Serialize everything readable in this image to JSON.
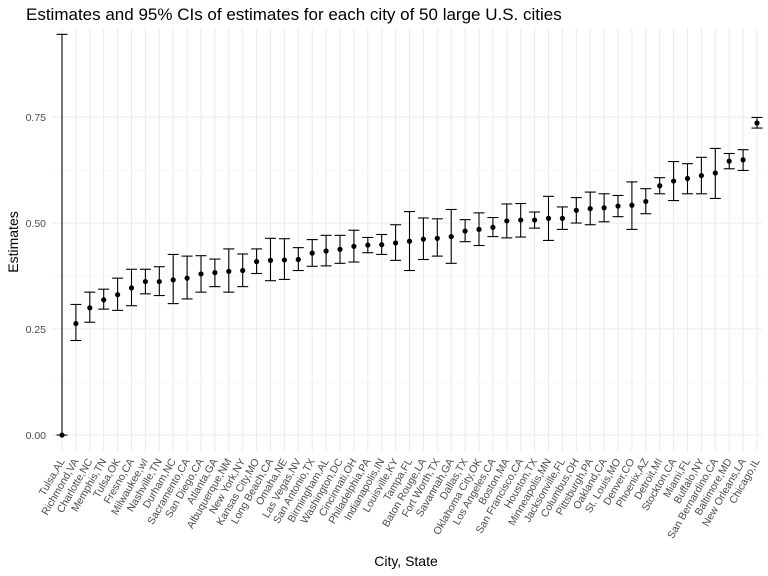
{
  "chart_data": {
    "type": "scatter",
    "title": "Estimates and 95% CIs of estimates for each city of 50 large U.S. cities",
    "xlabel": "City, State",
    "ylabel": "Estimates",
    "ylim": [
      -0.04,
      0.96
    ],
    "yticks": [
      0.0,
      0.25,
      0.5,
      0.75
    ],
    "ytick_labels": [
      "0.00",
      "0.25",
      "0.50",
      "0.75"
    ],
    "grid": true,
    "categories": [
      "Tulsa,AL",
      "Richmond,VA",
      "Charlotte,NC",
      "Memphis,TN",
      "Tulsa,OK",
      "Fresno,CA",
      "Milwaukee,wI",
      "Nashville,TN",
      "Durham,NC",
      "Sacramento,CA",
      "San Diego,CA",
      "Atlanta,GA",
      "Albuquerque,NM",
      "New York,NY",
      "Kansas City,MO",
      "Long Beach,CA",
      "Omaha,NE",
      "Las Vegas,NV",
      "San Antonio,TX",
      "Birmingham,AL",
      "Washington,DC",
      "Cincinnati,OH",
      "Philadelphia,PA",
      "Indianapolis,IN",
      "Louisville,KY",
      "Tampa,FL",
      "Baton Rouge,LA",
      "Fort Worth,TX",
      "Savannah,GA",
      "Dallas,TX",
      "Oklahoma City,OK",
      "Los Angeles,CA",
      "Boston,MA",
      "San Francisco,CA",
      "Houston,TX",
      "Minneapolis,MN",
      "Jacksonville,FL",
      "Columbus,OH",
      "Pittsburgh,PA",
      "Oakland,CA",
      "St. Louis,MO",
      "Denver,CO",
      "Phoenix,AZ",
      "Detroit,MI",
      "Stockton,CA",
      "Miami,FL",
      "Buffalo,NY",
      "San Bernardino,CA",
      "Baltimore,MD",
      "New Orleans,LA",
      "Chicago,IL"
    ],
    "series": [
      {
        "estimate": [
          0.0,
          0.263,
          0.3,
          0.319,
          0.331,
          0.347,
          0.362,
          0.362,
          0.366,
          0.37,
          0.38,
          0.383,
          0.386,
          0.388,
          0.409,
          0.412,
          0.413,
          0.414,
          0.429,
          0.434,
          0.438,
          0.445,
          0.448,
          0.449,
          0.453,
          0.457,
          0.462,
          0.464,
          0.468,
          0.481,
          0.485,
          0.49,
          0.505,
          0.507,
          0.507,
          0.511,
          0.511,
          0.53,
          0.534,
          0.536,
          0.54,
          0.542,
          0.551,
          0.588,
          0.599,
          0.605,
          0.612,
          0.618,
          0.646,
          0.649,
          0.736
        ],
        "ci_low": [
          0.0,
          0.223,
          0.266,
          0.297,
          0.294,
          0.305,
          0.333,
          0.329,
          0.31,
          0.321,
          0.337,
          0.35,
          0.337,
          0.35,
          0.381,
          0.364,
          0.367,
          0.388,
          0.398,
          0.399,
          0.405,
          0.408,
          0.43,
          0.426,
          0.412,
          0.388,
          0.414,
          0.422,
          0.405,
          0.456,
          0.447,
          0.468,
          0.465,
          0.467,
          0.488,
          0.459,
          0.485,
          0.5,
          0.496,
          0.503,
          0.515,
          0.485,
          0.522,
          0.569,
          0.553,
          0.569,
          0.569,
          0.558,
          0.628,
          0.624,
          0.724
        ],
        "ci_high": [
          0.945,
          0.308,
          0.337,
          0.344,
          0.37,
          0.391,
          0.391,
          0.397,
          0.426,
          0.422,
          0.423,
          0.415,
          0.439,
          0.427,
          0.439,
          0.464,
          0.463,
          0.442,
          0.461,
          0.471,
          0.471,
          0.483,
          0.466,
          0.473,
          0.496,
          0.527,
          0.512,
          0.51,
          0.532,
          0.508,
          0.524,
          0.513,
          0.545,
          0.546,
          0.526,
          0.563,
          0.538,
          0.56,
          0.573,
          0.569,
          0.565,
          0.597,
          0.581,
          0.607,
          0.645,
          0.64,
          0.655,
          0.676,
          0.664,
          0.673,
          0.749
        ]
      }
    ]
  }
}
